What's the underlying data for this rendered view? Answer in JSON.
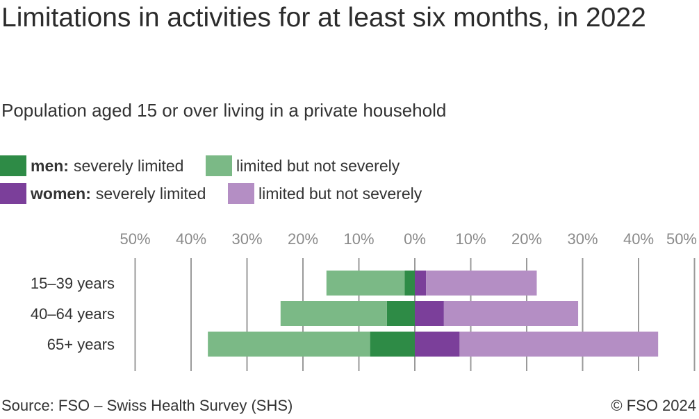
{
  "header": {
    "title": "Limitations in activities for at least six months, in 2022",
    "subtitle": "Population aged 15 or over living in a private household"
  },
  "legend": {
    "men_prefix": "men:",
    "men_severe": "severely limited",
    "men_limited": "limited but not severely",
    "women_prefix": "women:",
    "women_severe": "severely limited",
    "women_limited": "limited but not severely"
  },
  "colors": {
    "men_severe": "#2e8b46",
    "men_limited": "#7bb986",
    "women_severe": "#7b3f9a",
    "women_limited": "#b48ec4",
    "gridline": "#9a9a9a",
    "tick_text": "#8a8a8a"
  },
  "footer": {
    "source": "Source: FSO – Swiss Health Survey (SHS)",
    "copyright": "© FSO 2024"
  },
  "chart_data": {
    "type": "bar",
    "orientation": "horizontal-diverging",
    "categories": [
      "15–39 years",
      "40–64 years",
      "65+ years"
    ],
    "series": [
      {
        "name": "men: severely limited",
        "side": "left",
        "values": [
          1.8,
          5.0,
          8.0
        ]
      },
      {
        "name": "men: limited but not severely",
        "side": "left",
        "values": [
          14.0,
          19.0,
          29.0
        ]
      },
      {
        "name": "women: severely limited",
        "side": "right",
        "values": [
          2.0,
          5.2,
          8.0
        ]
      },
      {
        "name": "women: limited but not severely",
        "side": "right",
        "values": [
          19.8,
          24.0,
          35.5
        ]
      }
    ],
    "xlim": [
      -50,
      50
    ],
    "xticks": [
      -50,
      -40,
      -30,
      -20,
      -10,
      0,
      10,
      20,
      30,
      40,
      50
    ],
    "xtick_labels": [
      "50%",
      "40%",
      "30%",
      "20%",
      "10%",
      "0%",
      "10%",
      "20%",
      "30%",
      "40%",
      "50%"
    ],
    "grid": true
  }
}
